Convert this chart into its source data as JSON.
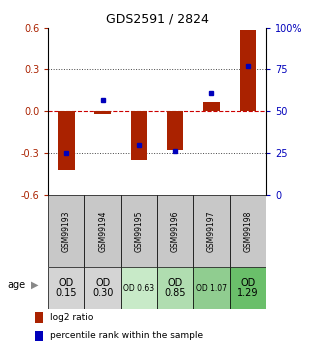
{
  "title": "GDS2591 / 2824",
  "samples": [
    "GSM99193",
    "GSM99194",
    "GSM99195",
    "GSM99196",
    "GSM99197",
    "GSM99198"
  ],
  "log2_ratio": [
    -0.42,
    -0.02,
    -0.35,
    -0.28,
    0.07,
    0.58
  ],
  "percentile_rank": [
    25,
    57,
    30,
    26,
    61,
    77
  ],
  "age_labels": [
    "OD\n0.15",
    "OD\n0.30",
    "OD 0.63",
    "OD\n0.85",
    "OD 1.07",
    "OD\n1.29"
  ],
  "age_fontsize_large": [
    true,
    true,
    false,
    true,
    false,
    true
  ],
  "cell_colors": [
    "#d4d4d4",
    "#d4d4d4",
    "#c8eac8",
    "#b0ddb0",
    "#90cd90",
    "#6abf6a"
  ],
  "ylim": [
    -0.6,
    0.6
  ],
  "yticks_left": [
    -0.6,
    -0.3,
    0.0,
    0.3,
    0.6
  ],
  "yticks_right": [
    0,
    25,
    50,
    75,
    100
  ],
  "bar_color": "#aa2200",
  "dot_color": "#0000bb",
  "dotted_line_color": "#444444",
  "zero_line_color": "#cc0000",
  "legend_red_label": "log2 ratio",
  "legend_blue_label": "percentile rank within the sample",
  "age_row_label": "age",
  "sample_bg": "#c8c8c8"
}
